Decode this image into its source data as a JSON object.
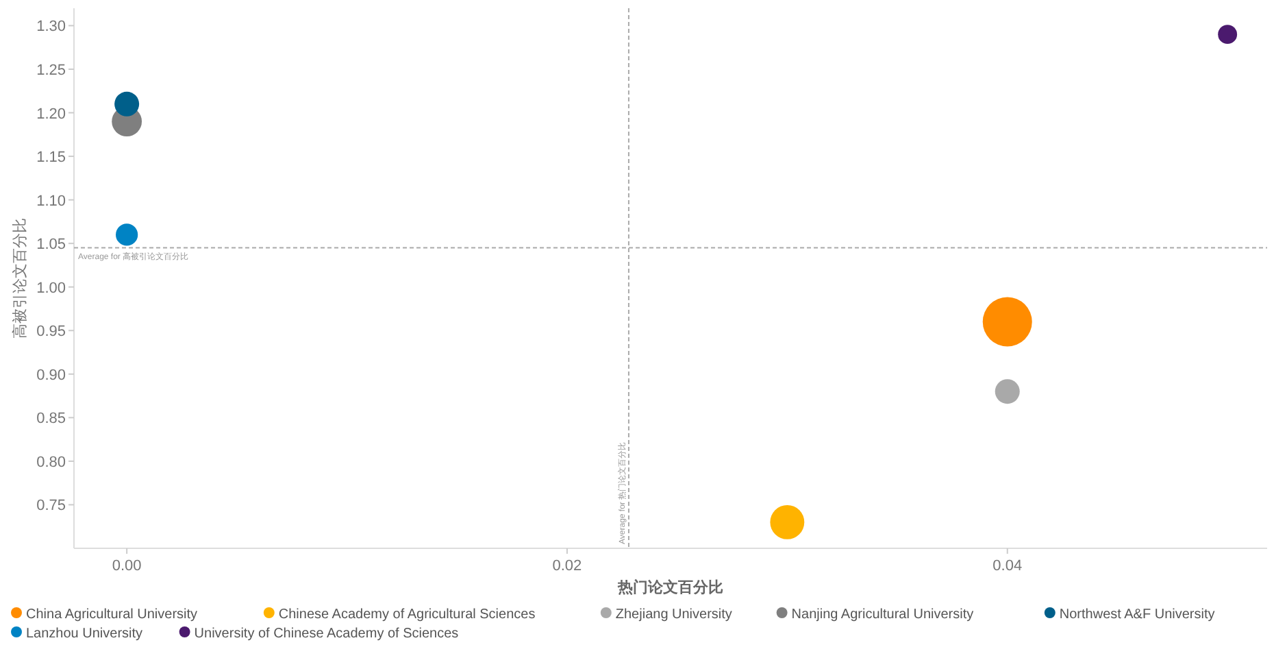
{
  "chart_data": {
    "type": "bubble",
    "xlabel": "热门论文百分比",
    "ylabel": "高被引论文百分比",
    "xlim": [
      -0.0024,
      0.0518
    ],
    "ylim": [
      0.7,
      1.32
    ],
    "xticks": [
      {
        "value": 0,
        "label": "0.00"
      },
      0.02,
      0.04
    ],
    "yticks": [
      0.75,
      {
        "value": 0.8,
        "label": "0.80"
      },
      0.85,
      {
        "value": 0.9,
        "label": "0.90"
      },
      0.95,
      {
        "value": 1.0,
        "label": "1.00"
      },
      1.05,
      {
        "value": 1.1,
        "label": "1.10"
      },
      1.15,
      {
        "value": 1.2,
        "label": "1.20"
      },
      1.25,
      {
        "value": 1.3,
        "label": "1.30"
      }
    ],
    "legend": "bottom",
    "marker": "circle",
    "ref_lines": [
      {
        "axis": "y",
        "value": 1.045,
        "label": "Average for 高被引论文百分比",
        "line_style": "dashed"
      },
      {
        "axis": "x",
        "value": 0.0228,
        "label": "Average for 热门论文百分比",
        "line_style": "dashed"
      }
    ],
    "series": [
      {
        "name": "China Agricultural University",
        "color": "#ff8c00",
        "x": [
          0.04
        ],
        "values": [
          0.96
        ],
        "sizes": [
          1
        ]
      },
      {
        "name": "Chinese Academy of Agricultural Sciences",
        "color": "#ffb300",
        "x": [
          0.03
        ],
        "values": [
          0.73
        ],
        "sizes": [
          0.48
        ]
      },
      {
        "name": "Zhejiang University",
        "color": "#a9a9a9",
        "x": [
          0.04
        ],
        "values": [
          0.88
        ],
        "sizes": [
          0.25
        ]
      },
      {
        "name": "Nanjing Agricultural University",
        "color": "#7f7f7f",
        "x": [
          0.0
        ],
        "values": [
          1.19
        ],
        "sizes": [
          0.37
        ]
      },
      {
        "name": "Northwest A&F University",
        "color": "#005f8a",
        "x": [
          0.0
        ],
        "values": [
          1.21
        ],
        "sizes": [
          0.25
        ]
      },
      {
        "name": "Lanzhou University",
        "color": "#0083c4",
        "x": [
          0.0
        ],
        "values": [
          1.06
        ],
        "sizes": [
          0.2
        ]
      },
      {
        "name": "University of Chinese Academy of Sciences",
        "color": "#4b1a6e",
        "x": [
          0.05
        ],
        "values": [
          1.29
        ],
        "sizes": [
          0.15
        ]
      }
    ]
  }
}
